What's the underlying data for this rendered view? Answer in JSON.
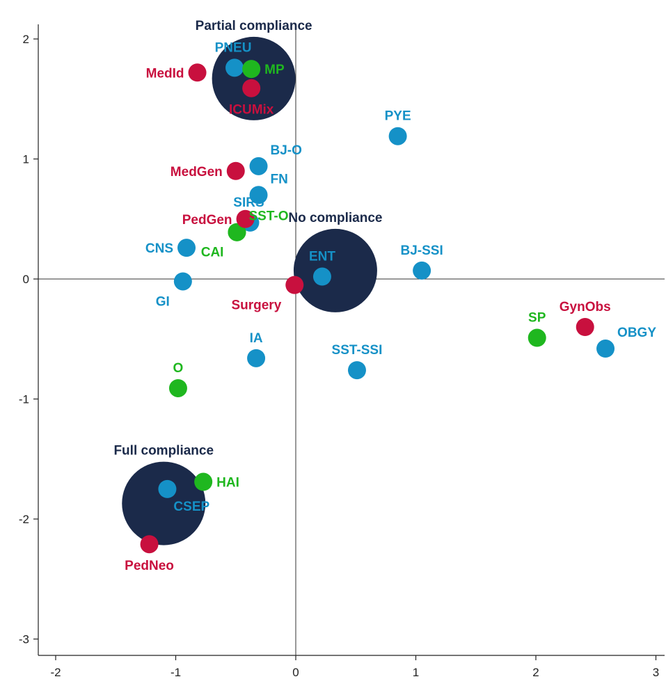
{
  "chart_data": {
    "type": "scatter",
    "title": "",
    "xlabel": "",
    "ylabel": "",
    "xlim": [
      -2.15,
      3.1
    ],
    "ylim": [
      -3.2,
      2.15
    ],
    "x_ticks": [
      -2,
      -1,
      0,
      1,
      2,
      3
    ],
    "y_ticks": [
      -3,
      -2,
      -1,
      0,
      1,
      2
    ],
    "grid": false,
    "reference_lines": {
      "x": 0,
      "y": 0
    },
    "colors": {
      "red": "#c8103e",
      "blue": "#1591c7",
      "green": "#1fb71f",
      "navy": "#1b2a4a"
    },
    "compliance": [
      {
        "label": "Partial compliance",
        "x": -0.35,
        "y": 1.67,
        "label_pos": "above"
      },
      {
        "label": "No compliance",
        "x": 0.33,
        "y": 0.07,
        "label_pos": "above"
      },
      {
        "label": "Full compliance",
        "x": -1.1,
        "y": -1.87,
        "label_pos": "above"
      }
    ],
    "red_points": [
      {
        "label": "MedId",
        "x": -0.82,
        "y": 1.72,
        "label_pos": "left"
      },
      {
        "label": "ICUMix",
        "x": -0.37,
        "y": 1.59,
        "label_pos": "below"
      },
      {
        "label": "MedGen",
        "x": -0.5,
        "y": 0.9,
        "label_pos": "left"
      },
      {
        "label": "PedGen",
        "x": -0.42,
        "y": 0.5,
        "label_pos": "left"
      },
      {
        "label": "Surgery",
        "x": -0.01,
        "y": -0.05,
        "label_pos": "below-left"
      },
      {
        "label": "GynObs",
        "x": 2.41,
        "y": -0.4,
        "label_pos": "above"
      },
      {
        "label": "PedNeo",
        "x": -1.22,
        "y": -2.21,
        "label_pos": "below"
      }
    ],
    "blue_points": [
      {
        "label": "PNEU",
        "x": -0.51,
        "y": 1.76,
        "label_pos": "above-left"
      },
      {
        "label": "PYE",
        "x": 0.85,
        "y": 1.19,
        "label_pos": "above"
      },
      {
        "label": "BJ-O",
        "x": -0.31,
        "y": 0.94,
        "label_pos": "above-right"
      },
      {
        "label": "FN",
        "x": -0.31,
        "y": 0.7,
        "label_pos": "above-right"
      },
      {
        "label": "SIRS",
        "x": -0.38,
        "y": 0.47,
        "label_pos": "above-left"
      },
      {
        "label": "CNS",
        "x": -0.91,
        "y": 0.26,
        "label_pos": "left"
      },
      {
        "label": "ENT",
        "x": 0.22,
        "y": 0.02,
        "label_pos": "above"
      },
      {
        "label": "BJ-SSI",
        "x": 1.05,
        "y": 0.07,
        "label_pos": "above"
      },
      {
        "label": "GI",
        "x": -0.94,
        "y": -0.02,
        "label_pos": "below-left"
      },
      {
        "label": "IA",
        "x": -0.33,
        "y": -0.66,
        "label_pos": "above"
      },
      {
        "label": "SST-SSI",
        "x": 0.51,
        "y": -0.76,
        "label_pos": "above"
      },
      {
        "label": "OBGY",
        "x": 2.58,
        "y": -0.58,
        "label_pos": "above-right"
      },
      {
        "label": "CSEP",
        "x": -1.07,
        "y": -1.75,
        "label_pos": "below-right"
      }
    ],
    "green_points": [
      {
        "label": "MP",
        "x": -0.37,
        "y": 1.75,
        "label_pos": "right"
      },
      {
        "label": "SST-O",
        "x": -0.49,
        "y": 0.39,
        "label_pos": "above-right"
      },
      {
        "label": "CAI",
        "x": -0.49,
        "y": 0.39,
        "label_pos": "below-left"
      },
      {
        "label": "SP",
        "x": 2.01,
        "y": -0.49,
        "label_pos": "above"
      },
      {
        "label": "O",
        "x": -0.98,
        "y": -0.91,
        "label_pos": "above"
      },
      {
        "label": "HAI",
        "x": -0.77,
        "y": -1.69,
        "label_pos": "right"
      }
    ]
  }
}
